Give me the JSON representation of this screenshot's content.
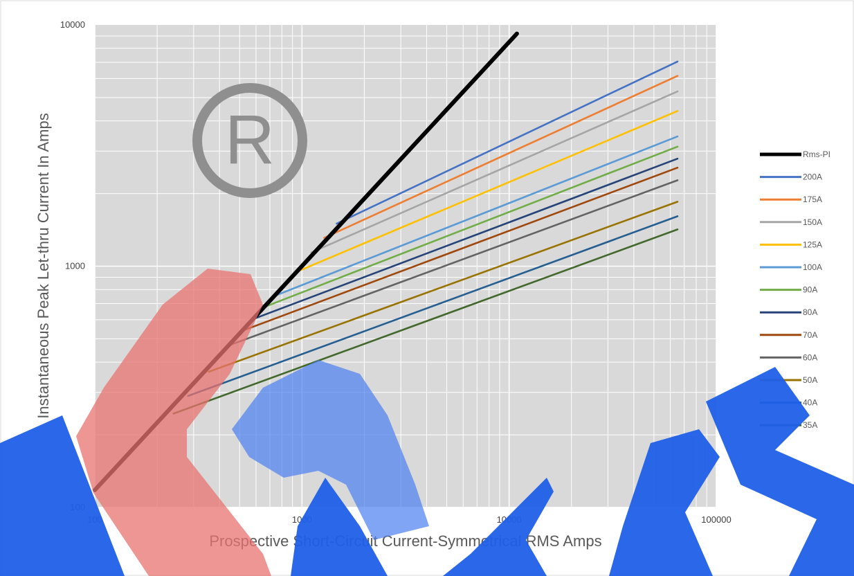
{
  "chart_data": {
    "type": "line",
    "xscale": "log",
    "yscale": "log",
    "xlim": [
      100,
      100000
    ],
    "ylim": [
      100,
      10000
    ],
    "grid": true,
    "legend_position": "right",
    "xlabel": "Prospective Short-Circuit Current-Symmetrical RMS Amps",
    "ylabel": "Instantaneous Peak Let-thru Current In Amps",
    "x_ticks": [
      "100",
      "1000",
      "10000",
      "100000"
    ],
    "y_ticks": [
      "100",
      "1000",
      "10000"
    ],
    "x_tick_values": [
      100,
      1000,
      10000,
      100000
    ],
    "y_tick_values": [
      100,
      1000,
      10000
    ],
    "series": [
      {
        "name": "Rms-PI",
        "color": "#000000",
        "x": [
          100,
          10900
        ],
        "y": [
          118,
          9200
        ]
      },
      {
        "name": "200A",
        "color": "#4472C4",
        "x": [
          1470,
          65000
        ],
        "y": [
          1500,
          7050
        ]
      },
      {
        "name": "175A",
        "color": "#ED7D31",
        "x": [
          1280,
          65000
        ],
        "y": [
          1310,
          6150
        ]
      },
      {
        "name": "150A",
        "color": "#A5A5A5",
        "x": [
          1110,
          65000
        ],
        "y": [
          1140,
          5300
        ]
      },
      {
        "name": "125A",
        "color": "#FFC000",
        "x": [
          920,
          65000
        ],
        "y": [
          940,
          4400
        ]
      },
      {
        "name": "100A",
        "color": "#5B9BD5",
        "x": [
          730,
          65000
        ],
        "y": [
          750,
          3450
        ]
      },
      {
        "name": "90A",
        "color": "#70AD47",
        "x": [
          665,
          65000
        ],
        "y": [
          680,
          3130
        ]
      },
      {
        "name": "80A",
        "color": "#264478",
        "x": [
          600,
          65000
        ],
        "y": [
          610,
          2790
        ]
      },
      {
        "name": "70A",
        "color": "#9E480E",
        "x": [
          530,
          65000
        ],
        "y": [
          545,
          2560
        ]
      },
      {
        "name": "60A",
        "color": "#636363",
        "x": [
          460,
          65000
        ],
        "y": [
          475,
          2270
        ]
      },
      {
        "name": "50A",
        "color": "#997300",
        "x": [
          355,
          65000
        ],
        "y": [
          365,
          1850
        ]
      },
      {
        "name": "40A",
        "color": "#255E91",
        "x": [
          282,
          65000
        ],
        "y": [
          290,
          1610
        ]
      },
      {
        "name": "35A",
        "color": "#43682B",
        "x": [
          240,
          65000
        ],
        "y": [
          245,
          1420
        ]
      }
    ]
  }
}
